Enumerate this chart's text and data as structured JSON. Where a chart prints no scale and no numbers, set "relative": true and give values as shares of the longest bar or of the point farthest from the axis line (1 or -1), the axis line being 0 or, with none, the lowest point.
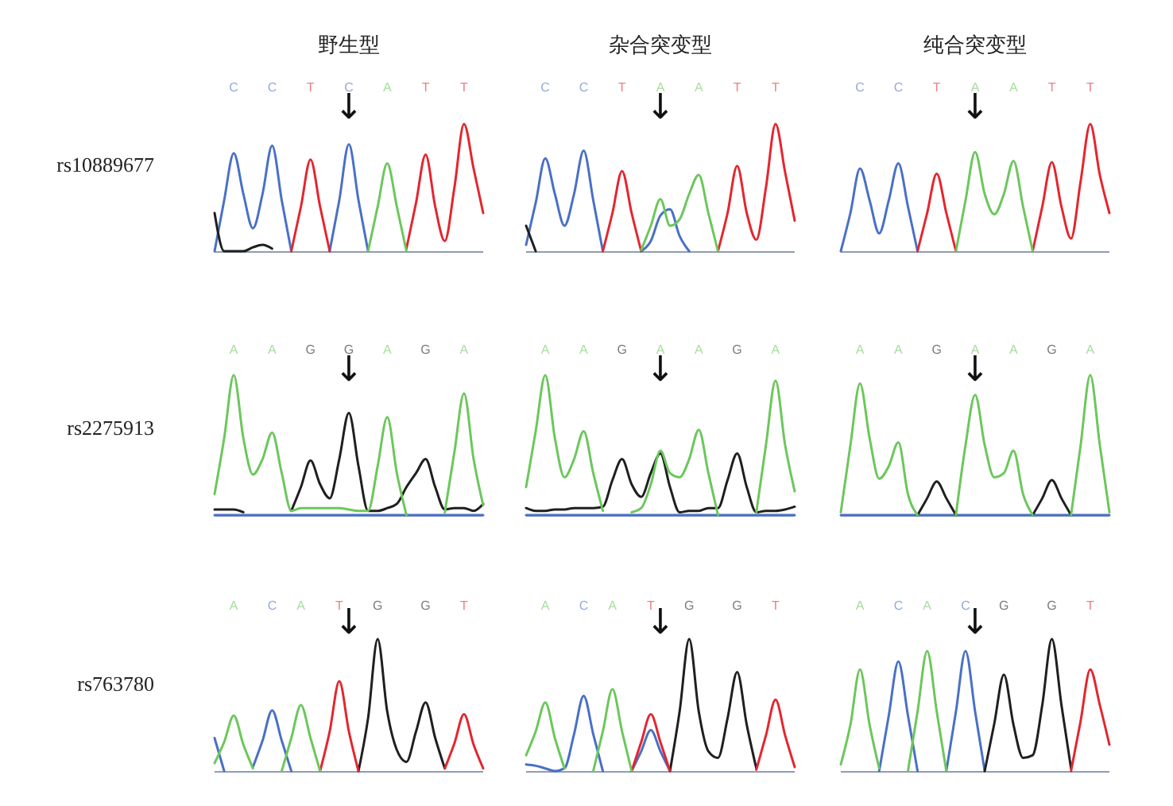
{
  "chart_data": [
    {
      "type": "line",
      "relative": true,
      "tick_labels": "x",
      "title": "野生型",
      "ylabel": "rs10889677",
      "categories": [
        null,
        null,
        "C",
        null,
        null,
        null,
        "C",
        null,
        null,
        null,
        "T",
        null,
        null,
        null,
        "C",
        null,
        null,
        null,
        "A",
        null,
        null,
        null,
        "T",
        null,
        null,
        null,
        "T",
        null,
        null
      ],
      "annotations": [
        "↓"
      ],
      "series": [
        {
          "color": "#4a70c6",
          "values": [
            0,
            0.4,
            0.77,
            0.45,
            0.18,
            0.45,
            0.83,
            0.4,
            0,
            null,
            null,
            null,
            0,
            0.4,
            0.84,
            0.4,
            0,
            null,
            null,
            null,
            null,
            null,
            null,
            null,
            null,
            null,
            null,
            null,
            null
          ]
        },
        {
          "color": "#1f1f1f",
          "values": [
            0.3,
            0,
            0,
            0,
            0.03,
            0.05,
            0.02,
            null,
            null,
            null,
            null,
            null,
            null,
            null,
            null,
            null,
            null,
            null,
            null,
            null,
            null,
            null,
            null,
            null,
            null,
            null,
            null,
            null,
            null
          ]
        },
        {
          "color": "#e3262f",
          "values": [
            null,
            null,
            null,
            null,
            null,
            null,
            null,
            null,
            0,
            0.35,
            0.72,
            0.35,
            0,
            null,
            null,
            null,
            null,
            null,
            null,
            null,
            0.02,
            0.38,
            0.76,
            0.35,
            0.08,
            0.5,
            1,
            0.65,
            0.3
          ]
        },
        {
          "color": "#6cc75c",
          "values": [
            null,
            null,
            null,
            null,
            null,
            null,
            null,
            null,
            null,
            null,
            null,
            null,
            null,
            null,
            null,
            null,
            0,
            0.35,
            0.69,
            0.35,
            0,
            null,
            null,
            null,
            null,
            null,
            null,
            null,
            null
          ]
        }
      ]
    },
    {
      "type": "line",
      "relative": true,
      "tick_labels": "x",
      "title": "杂合突变型",
      "categories": [
        null,
        null,
        "C",
        null,
        null,
        null,
        "C",
        null,
        null,
        null,
        "T",
        null,
        null,
        null,
        "A",
        null,
        null,
        null,
        "A",
        null,
        null,
        null,
        "T",
        null,
        null,
        null,
        "T",
        null,
        null
      ],
      "annotations": [
        "↓"
      ],
      "series": [
        {
          "color": "#4a70c6",
          "values": [
            0.05,
            0.38,
            0.73,
            0.45,
            0.2,
            0.45,
            0.79,
            0.4,
            0,
            null,
            null,
            null,
            0,
            0.08,
            0.28,
            0.33,
            0.12,
            0,
            null,
            null,
            null,
            null,
            null,
            null,
            null,
            null,
            null,
            null,
            null
          ]
        },
        {
          "color": "#1f1f1f",
          "values": [
            0.2,
            0,
            null,
            null,
            null,
            null,
            null,
            null,
            null,
            null,
            null,
            null,
            null,
            null,
            null,
            null,
            null,
            null,
            null,
            null,
            null,
            null,
            null,
            null,
            null,
            null,
            null,
            null,
            null
          ]
        },
        {
          "color": "#e3262f",
          "values": [
            null,
            null,
            null,
            null,
            null,
            null,
            null,
            null,
            0,
            0.3,
            0.63,
            0.3,
            0,
            null,
            null,
            null,
            null,
            null,
            null,
            null,
            0,
            0.3,
            0.67,
            0.3,
            0.09,
            0.5,
            1,
            0.62,
            0.24
          ]
        },
        {
          "color": "#6cc75c",
          "values": [
            null,
            null,
            null,
            null,
            null,
            null,
            null,
            null,
            null,
            null,
            null,
            null,
            0.01,
            0.2,
            0.41,
            0.2,
            0.25,
            0.45,
            0.6,
            0.3,
            0,
            null,
            null,
            null,
            null,
            null,
            null,
            null,
            null
          ]
        }
      ]
    },
    {
      "type": "line",
      "relative": true,
      "tick_labels": "x",
      "title": "纯合突变型",
      "categories": [
        null,
        null,
        "C",
        null,
        null,
        null,
        "C",
        null,
        null,
        null,
        "T",
        null,
        null,
        null,
        "A",
        null,
        null,
        null,
        "A",
        null,
        null,
        null,
        "T",
        null,
        null,
        null,
        "T",
        null,
        null
      ],
      "annotations": [
        "↓"
      ],
      "series": [
        {
          "color": "#4a70c6",
          "values": [
            0,
            0.3,
            0.65,
            0.4,
            0.14,
            0.4,
            0.69,
            0.35,
            0,
            null,
            null,
            null,
            null,
            null,
            null,
            null,
            null,
            null,
            null,
            null,
            null,
            null,
            null,
            null,
            null,
            null,
            null,
            null,
            null
          ]
        },
        {
          "color": "#e3262f",
          "values": [
            null,
            null,
            null,
            null,
            null,
            null,
            null,
            null,
            0,
            0.3,
            0.61,
            0.3,
            0,
            null,
            null,
            null,
            null,
            null,
            null,
            null,
            0,
            0.35,
            0.7,
            0.35,
            0.1,
            0.55,
            1,
            0.6,
            0.3
          ]
        },
        {
          "color": "#6cc75c",
          "values": [
            null,
            null,
            null,
            null,
            null,
            null,
            null,
            null,
            null,
            null,
            null,
            null,
            0,
            0.4,
            0.78,
            0.45,
            0.29,
            0.45,
            0.71,
            0.35,
            0,
            null,
            null,
            null,
            null,
            null,
            null,
            null,
            null
          ]
        }
      ]
    },
    {
      "type": "line",
      "relative": true,
      "tick_labels": "x",
      "ylabel": "rs2275913",
      "categories": [
        null,
        null,
        "A",
        null,
        null,
        null,
        "A",
        null,
        null,
        null,
        "G",
        null,
        null,
        null,
        "G",
        null,
        null,
        null,
        "A",
        null,
        null,
        null,
        "G",
        null,
        null,
        null,
        "A",
        null,
        null
      ],
      "annotations": [
        "↓"
      ],
      "series": [
        {
          "color": "#4a70c6",
          "values": [
            0,
            0,
            0,
            0,
            0,
            0,
            0,
            0,
            0,
            0,
            0,
            0,
            0,
            0,
            0,
            0,
            0,
            0,
            0,
            0,
            0,
            0,
            0,
            0,
            0,
            0,
            0,
            0,
            0
          ]
        },
        {
          "color": "#1f1f1f",
          "values": [
            0.04,
            0.04,
            0.04,
            0.02,
            null,
            null,
            null,
            null,
            0.03,
            0.2,
            0.39,
            0.22,
            0.12,
            0.4,
            0.73,
            0.35,
            0.03,
            0.03,
            0.05,
            0.08,
            0.2,
            0.3,
            0.4,
            0.2,
            0.04,
            0.05,
            0.05,
            0.03,
            0.08
          ]
        },
        {
          "color": "#6cc75c",
          "values": [
            0.15,
            0.55,
            1,
            0.55,
            0.29,
            0.4,
            0.59,
            0.3,
            0.03,
            0.05,
            0.05,
            0.05,
            0.05,
            0.05,
            0.04,
            0.03,
            0.03,
            0.35,
            0.7,
            0.3,
            0,
            null,
            null,
            null,
            0.02,
            0.45,
            0.87,
            0.4,
            0.07
          ]
        }
      ]
    },
    {
      "type": "line",
      "relative": true,
      "tick_labels": "x",
      "categories": [
        null,
        null,
        "A",
        null,
        null,
        null,
        "A",
        null,
        null,
        null,
        "G",
        null,
        null,
        null,
        "A",
        null,
        null,
        null,
        "A",
        null,
        null,
        null,
        "G",
        null,
        null,
        null,
        "A",
        null,
        null
      ],
      "annotations": [
        "↓"
      ],
      "series": [
        {
          "color": "#4a70c6",
          "values": [
            0,
            0,
            0,
            0,
            0,
            0,
            0,
            0,
            0,
            0,
            0,
            0,
            0,
            0,
            0,
            0,
            0,
            0,
            0,
            0,
            0,
            0,
            0,
            0,
            0,
            0,
            0,
            0,
            0
          ]
        },
        {
          "color": "#1f1f1f",
          "values": [
            0.05,
            0.03,
            0.03,
            0.04,
            0.04,
            0.05,
            0.05,
            0.05,
            0.06,
            0.25,
            0.4,
            0.22,
            0.13,
            0.3,
            0.44,
            0.2,
            0.02,
            0.03,
            0.03,
            0.05,
            0.05,
            0.25,
            0.44,
            0.2,
            0.02,
            0.03,
            0.03,
            0.04,
            0.06
          ]
        },
        {
          "color": "#6cc75c",
          "values": [
            0.2,
            0.6,
            1,
            0.55,
            0.27,
            0.4,
            0.6,
            0.3,
            0.03,
            null,
            null,
            0.02,
            0.05,
            0.22,
            0.46,
            0.3,
            0.27,
            0.4,
            0.61,
            0.3,
            0,
            null,
            null,
            null,
            0.02,
            0.5,
            0.96,
            0.5,
            0.17
          ]
        }
      ]
    },
    {
      "type": "line",
      "relative": true,
      "tick_labels": "x",
      "categories": [
        null,
        null,
        "A",
        null,
        null,
        null,
        "A",
        null,
        null,
        null,
        "G",
        null,
        null,
        null,
        "A",
        null,
        null,
        null,
        "A",
        null,
        null,
        null,
        "G",
        null,
        null,
        null,
        "A",
        null,
        null
      ],
      "annotations": [
        "↓"
      ],
      "series": [
        {
          "color": "#4a70c6",
          "values": [
            0,
            0,
            0,
            0,
            0,
            0,
            0,
            0,
            0,
            0,
            0,
            0,
            0,
            0,
            0,
            0,
            0,
            0,
            0,
            0,
            0,
            0,
            0,
            0,
            0,
            0,
            0,
            0,
            0
          ]
        },
        {
          "color": "#1f1f1f",
          "values": [
            null,
            null,
            null,
            null,
            null,
            null,
            null,
            null,
            0,
            0.12,
            0.24,
            0.12,
            0,
            null,
            null,
            null,
            null,
            null,
            null,
            null,
            0,
            0.12,
            0.25,
            0.12,
            0,
            null,
            null,
            null,
            null
          ]
        },
        {
          "color": "#6cc75c",
          "values": [
            0.02,
            0.5,
            0.94,
            0.55,
            0.26,
            0.35,
            0.52,
            0.15,
            0,
            null,
            null,
            null,
            0,
            0.5,
            0.86,
            0.5,
            0.27,
            0.3,
            0.46,
            0.15,
            0,
            null,
            null,
            null,
            0,
            0.5,
            1,
            0.5,
            0.02
          ]
        }
      ]
    },
    {
      "type": "line",
      "relative": true,
      "tick_labels": "x",
      "ylabel": "rs763780",
      "categories": [
        null,
        null,
        "A",
        null,
        null,
        null,
        "C",
        null,
        null,
        "A",
        null,
        null,
        null,
        "T",
        null,
        null,
        null,
        "G",
        null,
        null,
        null,
        null,
        "G",
        null,
        null,
        null,
        "T",
        null,
        null
      ],
      "annotations": [
        "↓"
      ],
      "series": [
        {
          "color": "#4a70c6",
          "values": [
            0.25,
            0,
            null,
            null,
            0.03,
            0.23,
            0.46,
            0.23,
            0,
            null,
            null,
            null,
            null,
            null,
            null,
            null,
            null,
            null,
            null,
            null,
            null,
            null,
            null,
            null,
            null,
            null,
            null,
            null,
            null
          ]
        },
        {
          "color": "#1f1f1f",
          "values": [
            null,
            null,
            null,
            null,
            null,
            null,
            null,
            null,
            null,
            null,
            null,
            null,
            null,
            null,
            null,
            0,
            0.4,
            1,
            0.45,
            0.16,
            0.07,
            0.3,
            0.52,
            0.25,
            0.02,
            null,
            null,
            null,
            null
          ]
        },
        {
          "color": "#e3262f",
          "values": [
            null,
            null,
            null,
            null,
            null,
            null,
            null,
            null,
            null,
            null,
            null,
            0,
            0.3,
            0.68,
            0.3,
            0,
            null,
            null,
            null,
            null,
            null,
            null,
            null,
            null,
            0.02,
            0.21,
            0.43,
            0.2,
            0.02
          ]
        },
        {
          "color": "#6cc75c",
          "values": [
            0.06,
            0.22,
            0.42,
            0.2,
            0.02,
            null,
            null,
            0,
            0.25,
            0.5,
            0.25,
            0,
            null,
            null,
            null,
            null,
            null,
            null,
            null,
            null,
            null,
            null,
            null,
            null,
            null,
            null,
            null,
            null,
            null
          ]
        }
      ]
    },
    {
      "type": "line",
      "relative": true,
      "tick_labels": "x",
      "categories": [
        null,
        null,
        "A",
        null,
        null,
        null,
        "C",
        null,
        null,
        "A",
        null,
        null,
        null,
        "T",
        null,
        null,
        null,
        "G",
        null,
        null,
        null,
        null,
        "G",
        null,
        null,
        null,
        "T",
        null,
        null
      ],
      "annotations": [
        "↓"
      ],
      "series": [
        {
          "color": "#4a70c6",
          "values": [
            0.05,
            0.04,
            0.02,
            0,
            0.02,
            0.28,
            0.57,
            0.28,
            0,
            null,
            null,
            0,
            0.15,
            0.31,
            0.15,
            0,
            null,
            null,
            null,
            null,
            null,
            null,
            null,
            null,
            null,
            null,
            null,
            null,
            null
          ]
        },
        {
          "color": "#1f1f1f",
          "values": [
            null,
            null,
            null,
            null,
            null,
            null,
            null,
            null,
            null,
            null,
            null,
            null,
            null,
            null,
            null,
            0,
            0.45,
            1,
            0.45,
            0.15,
            0.1,
            0.4,
            0.75,
            0.35,
            0.02,
            null,
            null,
            null,
            null
          ]
        },
        {
          "color": "#e3262f",
          "values": [
            null,
            null,
            null,
            null,
            null,
            null,
            null,
            null,
            null,
            null,
            null,
            0,
            0.22,
            0.43,
            0.22,
            0,
            null,
            null,
            null,
            null,
            null,
            null,
            null,
            null,
            0.01,
            0.27,
            0.54,
            0.27,
            0.03
          ]
        },
        {
          "color": "#6cc75c",
          "values": [
            0.12,
            0.3,
            0.52,
            0.25,
            0.02,
            null,
            null,
            0,
            0.3,
            0.62,
            0.3,
            0,
            null,
            null,
            null,
            null,
            null,
            null,
            null,
            null,
            null,
            null,
            null,
            null,
            null,
            null,
            null,
            null,
            null
          ]
        }
      ]
    },
    {
      "type": "line",
      "relative": true,
      "tick_labels": "x",
      "categories": [
        null,
        null,
        "A",
        null,
        null,
        null,
        "C",
        null,
        null,
        "A",
        null,
        null,
        null,
        "C",
        null,
        null,
        null,
        "G",
        null,
        null,
        null,
        null,
        "G",
        null,
        null,
        null,
        "T",
        null,
        null
      ],
      "annotations": [
        "↓"
      ],
      "series": [
        {
          "color": "#4a70c6",
          "values": [
            null,
            null,
            null,
            null,
            0,
            0.42,
            0.83,
            0.42,
            0,
            null,
            null,
            0,
            0.45,
            0.91,
            0.45,
            0,
            null,
            null,
            null,
            null,
            null,
            null,
            null,
            null,
            null,
            null,
            null,
            null,
            null
          ]
        },
        {
          "color": "#1f1f1f",
          "values": [
            null,
            null,
            null,
            null,
            null,
            null,
            null,
            null,
            null,
            null,
            null,
            null,
            null,
            null,
            null,
            0,
            0.36,
            0.73,
            0.35,
            0.1,
            0.12,
            0.5,
            1,
            0.5,
            0.02,
            null,
            null,
            null,
            null
          ]
        },
        {
          "color": "#e3262f",
          "values": [
            null,
            null,
            null,
            null,
            null,
            null,
            null,
            null,
            null,
            null,
            null,
            null,
            null,
            null,
            null,
            null,
            null,
            null,
            null,
            null,
            null,
            null,
            null,
            null,
            0,
            0.38,
            0.77,
            0.5,
            0.2
          ]
        },
        {
          "color": "#6cc75c",
          "values": [
            0.05,
            0.35,
            0.77,
            0.35,
            0.02,
            null,
            null,
            0,
            0.45,
            0.91,
            0.45,
            0,
            null,
            null,
            null,
            null,
            null,
            null,
            null,
            null,
            null,
            null,
            null,
            null,
            null,
            null,
            null,
            null,
            null
          ]
        }
      ]
    }
  ]
}
